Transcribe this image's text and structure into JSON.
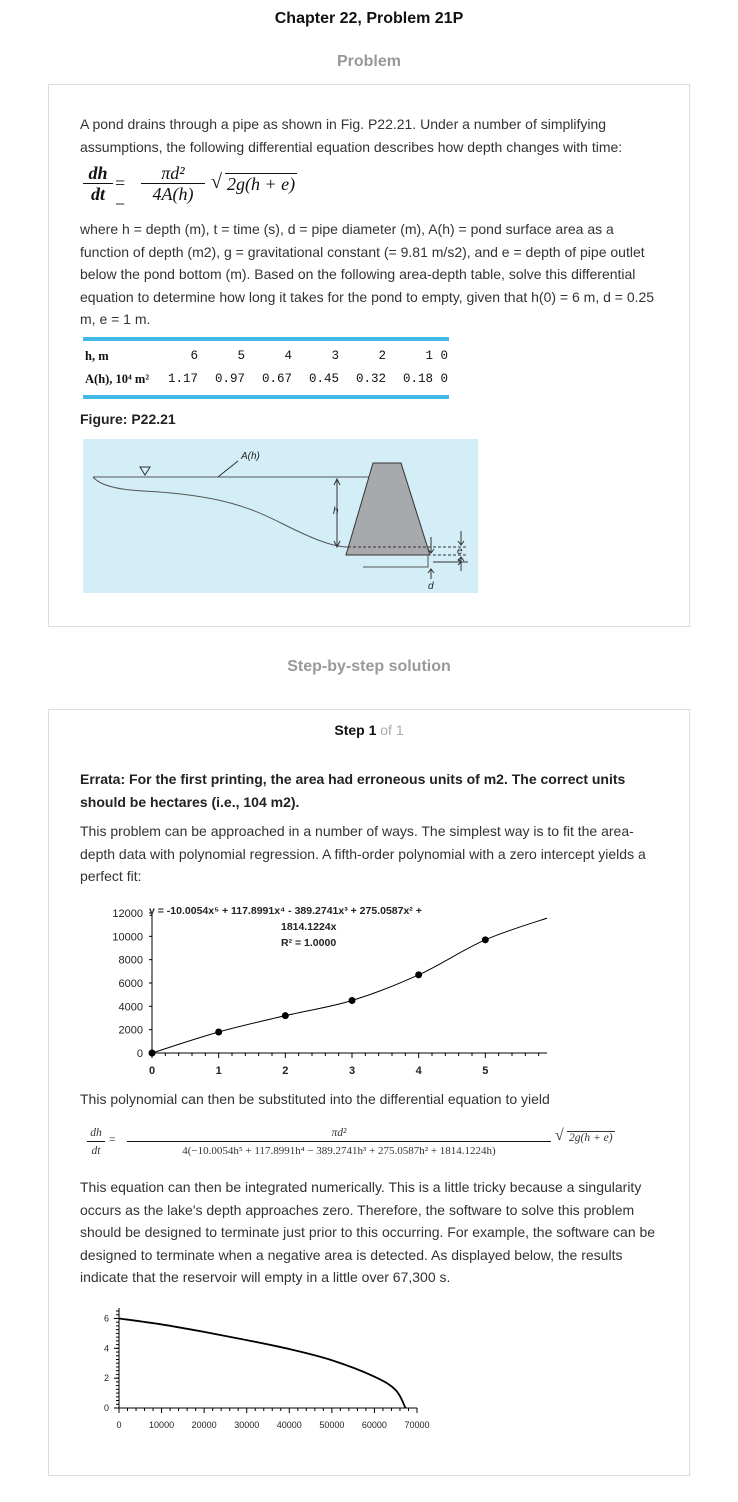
{
  "header": {
    "title": "Chapter 22, Problem 21P"
  },
  "problem_section": {
    "title": "Problem",
    "intro": "A pond drains through a pipe as shown in Fig. P22.21. Under a number of simplifying assumptions, the following differential equation describes how depth changes with time:",
    "equation": {
      "lhs_num": "dh",
      "lhs_den": "dt",
      "eq": "= −",
      "rhs_num": "πd²",
      "rhs_den": "4A(h)",
      "sqrt": "2g(h + e)"
    },
    "description": "where h = depth (m), t = time (s), d = pipe diameter (m), A(h) = pond surface area as a function of depth (m2), g = gravitational constant (= 9.81 m/s2), and e = depth of pipe outlet below the pond bottom (m). Based on the following area-depth table, solve this differential equation to determine how long it takes for the pond to empty, given that h(0) = 6 m, d = 0.25 m, e = 1 m.",
    "table": {
      "row1_label": "h, m",
      "row2_label": "A(h), 10⁴ m²",
      "h_values": [
        "6",
        "5",
        "4",
        "3",
        "2",
        "1",
        "0"
      ],
      "a_values": [
        "1.17",
        "0.97",
        "0.67",
        "0.45",
        "0.32",
        "0.18",
        "0"
      ]
    },
    "figure": {
      "title": "Figure: P22.21",
      "label_area": "A(h)",
      "label_h": "h",
      "label_e": "e",
      "label_d": "d",
      "water_color": "#d4eef8"
    }
  },
  "solution_section": {
    "title": "Step-by-step solution",
    "step_label": "Step 1",
    "step_of": "of 1",
    "errata": "Errata: For the first printing, the area had erroneous units of m2. The correct units should be hectares (i.e., 104 m2).",
    "para1": "This problem can be approached in a number of ways. The simplest way is to fit the area-depth data with polynomial regression. A fifth-order polynomial with a zero intercept yields a perfect fit:",
    "para2": "This polynomial can then be substituted into the differential equation to yield",
    "equation2": {
      "lhs_num": "dh",
      "lhs_den": "dt",
      "eq": "=",
      "num": "πd²",
      "den": "4(−10.0054h⁵ + 117.8991h⁴  − 389.2741h³ + 275.0587h² + 1814.1224h)",
      "sqrt": "2g(h + e)"
    },
    "para3": "This equation can then be integrated numerically. This is a little tricky because a singularity occurs as the lake's depth approaches zero. Therefore, the software to solve this problem should be designed to terminate just prior to this occurring. For example, the software can be designed to terminate when a negative area is detected. As displayed below, the results indicate that the reservoir will empty in a little over 67,300 s."
  },
  "chart_data": [
    {
      "type": "scatter",
      "title": "",
      "annotation_line1": "y = -10.0054x⁵ + 117.8991x⁴ - 389.2741x³ + 275.0587x² +",
      "annotation_line2": "1814.1224x",
      "annotation_r2": "R² = 1.0000",
      "x": [
        0,
        1,
        2,
        3,
        4,
        5,
        6
      ],
      "y": [
        0,
        1800,
        3200,
        4500,
        6700,
        9700,
        11700
      ],
      "xlim": [
        0,
        6
      ],
      "ylim": [
        0,
        12000
      ],
      "xticks": [
        "0",
        "1",
        "2",
        "3",
        "4",
        "5",
        "6"
      ],
      "yticks": [
        "0",
        "2000",
        "4000",
        "6000",
        "8000",
        "10000",
        "12000"
      ],
      "trendline": true,
      "grid": false
    },
    {
      "type": "line",
      "title": "",
      "x": [
        0,
        10000,
        20000,
        30000,
        40000,
        50000,
        60000,
        65000,
        67300
      ],
      "y": [
        6,
        5.6,
        5.1,
        4.55,
        3.95,
        3.2,
        2.1,
        1.2,
        0
      ],
      "xlim": [
        0,
        70000
      ],
      "ylim": [
        0,
        6.5
      ],
      "xticks": [
        "0",
        "10000",
        "20000",
        "30000",
        "40000",
        "50000",
        "60000",
        "70000"
      ],
      "yticks": [
        "0",
        "2",
        "4",
        "6"
      ],
      "grid": false
    }
  ]
}
